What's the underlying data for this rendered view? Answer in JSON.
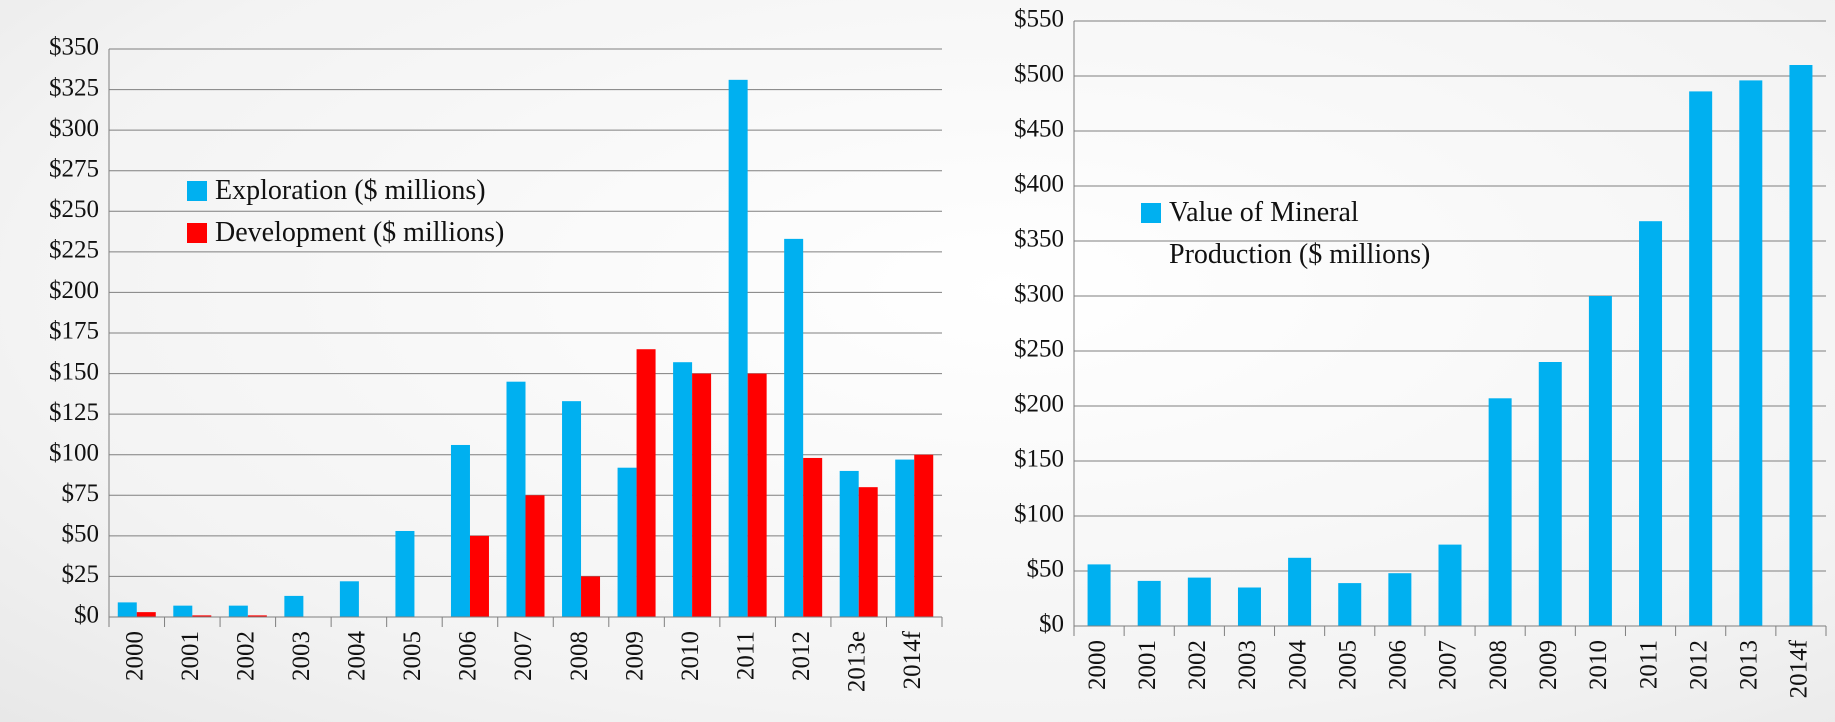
{
  "chart_data": [
    {
      "type": "bar",
      "categories": [
        "2000",
        "2001",
        "2002",
        "2003",
        "2004",
        "2005",
        "2006",
        "2007",
        "2008",
        "2009",
        "2010",
        "2011",
        "2012",
        "2013e",
        "2014f"
      ],
      "series": [
        {
          "name": "Exploration ($ millions)",
          "color": "#00b0f0",
          "values": [
            9,
            7,
            7,
            13,
            22,
            53,
            106,
            145,
            133,
            92,
            157,
            331,
            233,
            90,
            97
          ]
        },
        {
          "name": "Development ($ millions)",
          "color": "#ff0000",
          "values": [
            3,
            1,
            1,
            0,
            0,
            0,
            50,
            75,
            25,
            165,
            150,
            150,
            98,
            80,
            100
          ]
        }
      ],
      "ylim": [
        0,
        350
      ],
      "yticks": [
        {
          "value": 0,
          "label": "$0"
        },
        {
          "value": 25,
          "label": "$25"
        },
        {
          "value": 50,
          "label": "$50"
        },
        {
          "value": 75,
          "label": "$75"
        },
        {
          "value": 100,
          "label": "$100"
        },
        {
          "value": 125,
          "label": "$125"
        },
        {
          "value": 150,
          "label": "$150"
        },
        {
          "value": 175,
          "label": "$175"
        },
        {
          "value": 200,
          "label": "$200"
        },
        {
          "value": 225,
          "label": "$225"
        },
        {
          "value": 250,
          "label": "$250"
        },
        {
          "value": 275,
          "label": "$275"
        },
        {
          "value": 300,
          "label": "$300"
        },
        {
          "value": 325,
          "label": "$325"
        },
        {
          "value": 350,
          "label": "$350"
        }
      ],
      "grid": true,
      "legend": "upper left"
    },
    {
      "type": "bar",
      "categories": [
        "2000",
        "2001",
        "2002",
        "2003",
        "2004",
        "2005",
        "2006",
        "2007",
        "2008",
        "2009",
        "2010",
        "2011",
        "2012",
        "2013",
        "2014f"
      ],
      "series": [
        {
          "name": "Value of Mineral Production ($ millions)",
          "color": "#00b0f0",
          "values": [
            56,
            41,
            44,
            35,
            62,
            39,
            48,
            74,
            207,
            240,
            300,
            368,
            486,
            496,
            510
          ]
        }
      ],
      "ylim": [
        0,
        550
      ],
      "yticks": [
        {
          "value": 0,
          "label": "$0"
        },
        {
          "value": 50,
          "label": "$50"
        },
        {
          "value": 100,
          "label": "$100"
        },
        {
          "value": 150,
          "label": "$150"
        },
        {
          "value": 200,
          "label": "$200"
        },
        {
          "value": 250,
          "label": "$250"
        },
        {
          "value": 300,
          "label": "$300"
        },
        {
          "value": 350,
          "label": "$350"
        },
        {
          "value": 400,
          "label": "$400"
        },
        {
          "value": 450,
          "label": "$450"
        },
        {
          "value": 500,
          "label": "$500"
        },
        {
          "value": 550,
          "label": "$550"
        }
      ],
      "grid": true,
      "legend": "upper left"
    }
  ]
}
